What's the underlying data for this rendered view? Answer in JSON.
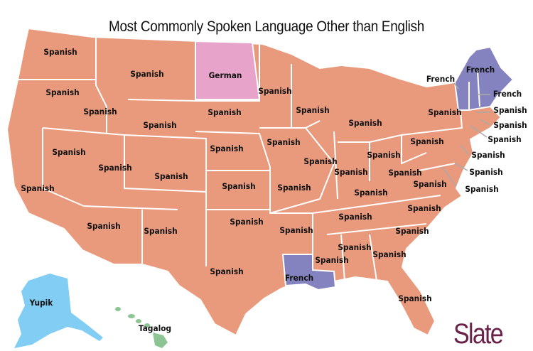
{
  "title": "Most Commonly Spoken Language Other than English",
  "colors": {
    "Spanish": "#E99A7D",
    "French": "#8483BF",
    "German": "#E8A3CB",
    "Yupik": "#82CDF3",
    "Tagalog": "#8DC494",
    "logo": "#6B2249"
  },
  "labels": [
    "Spanish",
    "Spanish",
    "German",
    "Spanish",
    "Spanish",
    "Spanish",
    "Spanish",
    "Spanish",
    "Spanish",
    "Spanish",
    "Spanish",
    "Spanish",
    "Spanish",
    "Spanish",
    "Spanish",
    "Spanish",
    "Spanish",
    "Spanish",
    "Spanish",
    "Spanish",
    "Spanish",
    "Spanish",
    "Spanish",
    "Spanish",
    "Spanish",
    "Spanish",
    "Spanish",
    "Spanish",
    "Spanish",
    "Spanish",
    "Spanish",
    "Spanish",
    "Spanish",
    "Spanish",
    "Spanish",
    "French",
    "Spanish",
    "Yupik",
    "Tagalog",
    "Spanish",
    "Spanish",
    "French",
    "French",
    "French",
    "Spanish",
    "Spanish",
    "Spanish",
    "Spanish",
    "Spanish",
    "Spanish"
  ],
  "logo": "Slate"
}
